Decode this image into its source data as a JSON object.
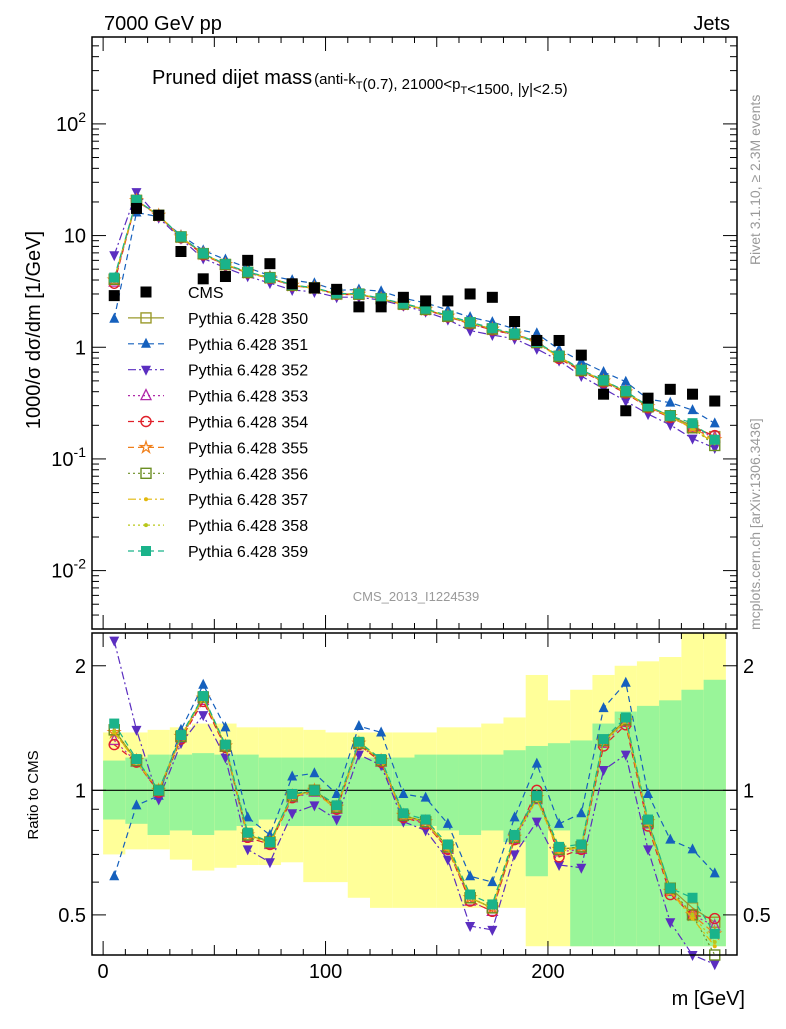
{
  "header": {
    "left": "7000 GeV pp",
    "right": "Jets"
  },
  "side_labels": {
    "rivet": "Rivet 3.1.10, ≥ 2.3M events",
    "mcplots": "mcplots.cern.ch [arXiv:1306.3436]"
  },
  "analysis_id": "CMS_2013_I1224539",
  "chart_data": [
    {
      "type": "scatter",
      "title": "Pruned dijet mass",
      "title_detail": "(anti-k_T(0.7), 21000<p_T<1500, |y|<2.5)",
      "xlabel": "m [GeV]",
      "ylabel": "1000/σ dσ/dm [1/GeV]",
      "y_scale": "log",
      "xlim": [
        -5,
        285
      ],
      "ylim": [
        0.003,
        600
      ],
      "y_ticks": [
        "10^-2",
        "10^-1",
        "1",
        "10",
        "10^2"
      ],
      "x_ticks": [
        "0",
        "100",
        "200"
      ],
      "legend_position": "middle-left",
      "x": [
        5,
        15,
        25,
        35,
        45,
        55,
        65,
        75,
        85,
        95,
        105,
        115,
        125,
        135,
        145,
        155,
        165,
        175,
        185,
        195,
        205,
        215,
        225,
        235,
        245,
        255,
        265,
        275
      ],
      "cms": [
        2.9,
        17.5,
        15.2,
        7.2,
        4.1,
        4.3,
        6.0,
        5.6,
        3.7,
        3.4,
        3.3,
        2.3,
        2.3,
        2.8,
        2.6,
        2.6,
        3.0,
        2.8,
        1.7,
        1.15,
        1.15,
        0.85,
        0.38,
        0.27,
        0.35,
        0.42,
        0.38,
        0.33
      ],
      "series": [
        {
          "name": "CMS",
          "color": "#000000",
          "marker": "square-filled",
          "dash": "none"
        },
        {
          "name": "Pythia 6.428 350",
          "color": "#9a9a2b",
          "marker": "square-open",
          "dash": "solid"
        },
        {
          "name": "Pythia 6.428 351",
          "color": "#1560bd",
          "marker": "triangle-up",
          "dash": "dashed"
        },
        {
          "name": "Pythia 6.428 352",
          "color": "#5b2ec0",
          "marker": "triangle-down",
          "dash": "dashdot"
        },
        {
          "name": "Pythia 6.428 353",
          "color": "#b02aa8",
          "marker": "triangle-open",
          "dash": "dotted"
        },
        {
          "name": "Pythia 6.428 354",
          "color": "#e0202a",
          "marker": "circle-open",
          "dash": "dashed"
        },
        {
          "name": "Pythia 6.428 355",
          "color": "#f07f1a",
          "marker": "star",
          "dash": "dashed"
        },
        {
          "name": "Pythia 6.428 356",
          "color": "#6b8e23",
          "marker": "square-open",
          "dash": "dotted"
        },
        {
          "name": "Pythia 6.428 357",
          "color": "#e2b80c",
          "marker": "dot",
          "dash": "dashdot"
        },
        {
          "name": "Pythia 6.428 358",
          "color": "#b8c71a",
          "marker": "dot",
          "dash": "dotted"
        },
        {
          "name": "Pythia 6.428 359",
          "color": "#1ab38a",
          "marker": "square-filled",
          "dash": "dashed"
        }
      ]
    },
    {
      "type": "scatter",
      "ylabel": "Ratio to CMS",
      "xlabel": "m [GeV]",
      "y_scale": "log",
      "ylim": [
        0.4,
        2.4
      ],
      "y_ticks": [
        "0.5",
        "1",
        "2"
      ],
      "ratios": [
        {
          "name": "Pythia 6.428 350",
          "values": [
            1.4,
            1.18,
            1.0,
            1.35,
            1.68,
            1.28,
            0.78,
            0.75,
            0.97,
            1.0,
            0.91,
            1.3,
            1.18,
            0.87,
            0.84,
            0.73,
            0.55,
            0.52,
            0.77,
            0.96,
            0.72,
            0.73,
            1.32,
            1.48,
            0.84,
            0.58,
            0.52,
            0.48
          ]
        },
        {
          "name": "Pythia 6.428 351",
          "values": [
            0.62,
            0.92,
            0.97,
            1.4,
            1.8,
            1.42,
            0.86,
            0.78,
            1.08,
            1.1,
            0.98,
            1.43,
            1.38,
            0.98,
            0.96,
            0.83,
            0.62,
            0.6,
            0.86,
            1.16,
            0.83,
            0.88,
            1.58,
            1.82,
            0.98,
            0.76,
            0.72,
            0.63
          ]
        },
        {
          "name": "Pythia 6.428 352",
          "values": [
            2.3,
            1.4,
            0.95,
            1.3,
            1.52,
            1.2,
            0.72,
            0.67,
            0.88,
            0.92,
            0.85,
            1.22,
            1.15,
            0.84,
            0.8,
            0.68,
            0.47,
            0.46,
            0.7,
            0.84,
            0.66,
            0.65,
            1.12,
            1.22,
            0.72,
            0.48,
            0.4,
            0.38
          ]
        },
        {
          "name": "Pythia 6.428 353",
          "values": [
            1.32,
            1.17,
            0.99,
            1.34,
            1.65,
            1.27,
            0.77,
            0.74,
            0.96,
            0.99,
            0.9,
            1.29,
            1.17,
            0.87,
            0.83,
            0.72,
            0.54,
            0.51,
            0.76,
            0.95,
            0.71,
            0.72,
            1.3,
            1.46,
            0.83,
            0.57,
            0.5,
            0.47
          ]
        },
        {
          "name": "Pythia 6.428 354",
          "values": [
            1.29,
            1.17,
            0.99,
            1.33,
            1.64,
            1.27,
            0.77,
            0.74,
            0.96,
            1.0,
            0.9,
            1.29,
            1.17,
            0.86,
            0.83,
            0.72,
            0.54,
            0.51,
            0.76,
            1.0,
            0.69,
            0.72,
            1.28,
            1.44,
            0.82,
            0.56,
            0.5,
            0.49
          ]
        },
        {
          "name": "Pythia 6.428 355",
          "values": [
            1.38,
            1.18,
            1.0,
            1.35,
            1.67,
            1.28,
            0.78,
            0.75,
            0.97,
            1.0,
            0.91,
            1.3,
            1.18,
            0.87,
            0.84,
            0.73,
            0.55,
            0.52,
            0.77,
            0.96,
            0.72,
            0.73,
            1.31,
            1.47,
            0.84,
            0.57,
            0.5,
            0.45
          ]
        },
        {
          "name": "Pythia 6.428 356",
          "values": [
            1.4,
            1.18,
            1.0,
            1.35,
            1.68,
            1.28,
            0.78,
            0.75,
            0.97,
            1.0,
            0.91,
            1.3,
            1.18,
            0.87,
            0.84,
            0.73,
            0.55,
            0.52,
            0.77,
            0.96,
            0.72,
            0.73,
            1.32,
            1.48,
            0.84,
            0.58,
            0.5,
            0.4
          ]
        },
        {
          "name": "Pythia 6.428 357",
          "values": [
            1.38,
            1.17,
            1.0,
            1.34,
            1.67,
            1.28,
            0.78,
            0.74,
            0.97,
            0.99,
            0.9,
            1.3,
            1.18,
            0.86,
            0.84,
            0.72,
            0.55,
            0.52,
            0.77,
            0.95,
            0.71,
            0.73,
            1.31,
            1.47,
            0.83,
            0.57,
            0.49,
            0.42
          ]
        },
        {
          "name": "Pythia 6.428 358",
          "values": [
            1.39,
            1.18,
            1.0,
            1.35,
            1.67,
            1.28,
            0.78,
            0.75,
            0.97,
            1.0,
            0.91,
            1.3,
            1.18,
            0.87,
            0.84,
            0.73,
            0.55,
            0.52,
            0.77,
            0.96,
            0.72,
            0.73,
            1.31,
            1.47,
            0.84,
            0.57,
            0.5,
            0.43
          ]
        },
        {
          "name": "Pythia 6.428 359",
          "values": [
            1.45,
            1.19,
            1.0,
            1.36,
            1.69,
            1.29,
            0.79,
            0.75,
            0.98,
            1.0,
            0.92,
            1.31,
            1.19,
            0.88,
            0.85,
            0.74,
            0.56,
            0.53,
            0.78,
            0.97,
            0.73,
            0.74,
            1.33,
            1.5,
            0.85,
            0.58,
            0.55,
            0.45
          ]
        }
      ],
      "band_inner": [
        [
          0.85,
          1.18
        ],
        [
          0.83,
          1.2
        ],
        [
          0.78,
          1.22
        ],
        [
          0.8,
          1.22
        ],
        [
          0.78,
          1.23
        ],
        [
          0.8,
          1.22
        ],
        [
          0.82,
          1.22
        ],
        [
          0.85,
          1.2
        ],
        [
          0.82,
          1.2
        ],
        [
          0.82,
          1.2
        ],
        [
          0.82,
          1.2
        ],
        [
          0.82,
          1.2
        ],
        [
          0.82,
          1.2
        ],
        [
          0.82,
          1.2
        ],
        [
          0.82,
          1.22
        ],
        [
          0.8,
          1.22
        ],
        [
          0.78,
          1.22
        ],
        [
          0.8,
          1.22
        ],
        [
          0.75,
          1.25
        ],
        [
          0.62,
          1.28
        ],
        [
          0.8,
          1.3
        ],
        [
          0.42,
          1.32
        ],
        [
          0.42,
          1.45
        ],
        [
          0.42,
          1.55
        ],
        [
          0.42,
          1.6
        ],
        [
          0.42,
          1.65
        ],
        [
          0.42,
          1.75
        ],
        [
          0.42,
          1.85
        ]
      ],
      "band_outer": [
        [
          0.7,
          1.38
        ],
        [
          0.72,
          1.38
        ],
        [
          0.72,
          1.4
        ],
        [
          0.68,
          1.42
        ],
        [
          0.64,
          1.45
        ],
        [
          0.65,
          1.45
        ],
        [
          0.66,
          1.42
        ],
        [
          0.66,
          1.42
        ],
        [
          0.67,
          1.42
        ],
        [
          0.6,
          1.4
        ],
        [
          0.6,
          1.38
        ],
        [
          0.55,
          1.38
        ],
        [
          0.52,
          1.38
        ],
        [
          0.52,
          1.38
        ],
        [
          0.52,
          1.38
        ],
        [
          0.52,
          1.42
        ],
        [
          0.52,
          1.42
        ],
        [
          0.52,
          1.45
        ],
        [
          0.52,
          1.5
        ],
        [
          0.42,
          1.9
        ],
        [
          0.42,
          1.65
        ],
        [
          0.42,
          1.75
        ],
        [
          0.42,
          1.9
        ],
        [
          0.42,
          2.0
        ],
        [
          0.42,
          2.05
        ],
        [
          0.42,
          2.1
        ],
        [
          0.42,
          2.4
        ],
        [
          0.42,
          2.4
        ]
      ]
    }
  ]
}
